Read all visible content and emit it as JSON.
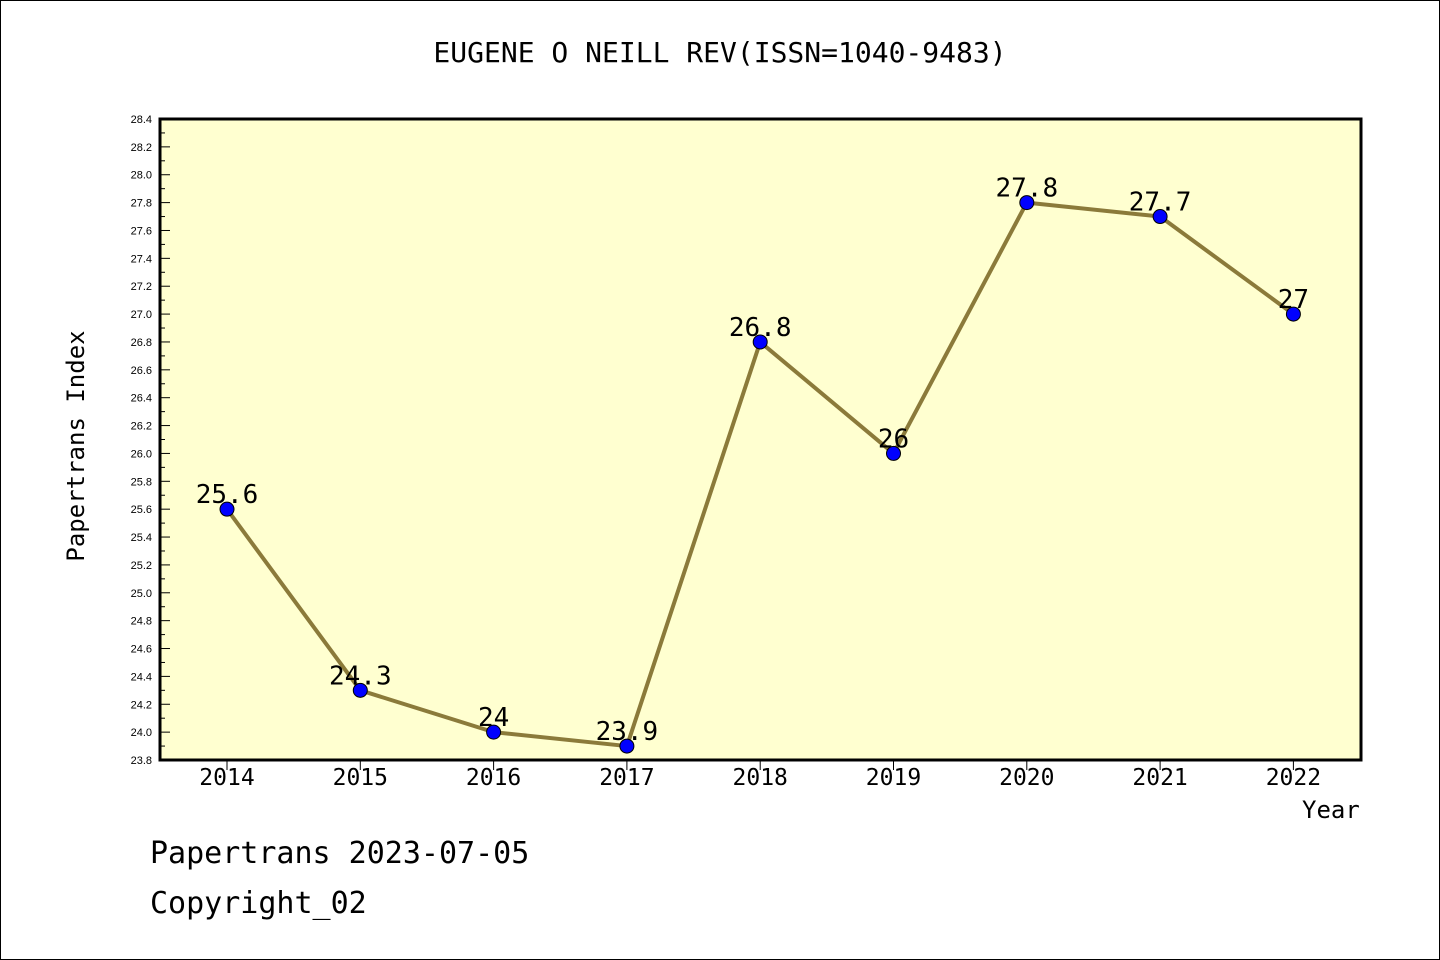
{
  "chart_data": {
    "type": "line",
    "title": "EUGENE O NEILL REV(ISSN=1040-9483)",
    "xlabel": "Year",
    "ylabel": "Papertrans Index",
    "categories": [
      "2014",
      "2015",
      "2016",
      "2017",
      "2018",
      "2019",
      "2020",
      "2021",
      "2022"
    ],
    "series": [
      {
        "values": [
          25.6,
          24.3,
          24.0,
          23.9,
          26.8,
          26.0,
          27.8,
          27.7,
          27.0
        ],
        "labels": [
          "25.6",
          "24.3",
          "24",
          "23.9",
          "26.8",
          "26",
          "27.8",
          "27.7",
          "27"
        ]
      }
    ],
    "ylim": [
      23.8,
      28.4
    ],
    "yticks": [
      "23.8",
      "24.0",
      "24.2",
      "24.4",
      "24.6",
      "24.8",
      "25.0",
      "25.2",
      "25.4",
      "25.6",
      "25.8",
      "26.0",
      "26.2",
      "26.4",
      "26.6",
      "26.8",
      "27.0",
      "27.2",
      "27.4",
      "27.6",
      "27.8",
      "28.0",
      "28.2",
      "28.4"
    ],
    "grid": false,
    "colors": {
      "line": "#8b7a3a",
      "marker": "#0000ff",
      "plot_background": "#ffffd0"
    }
  },
  "footer": {
    "line1": "Papertrans 2023-07-05",
    "line2": "Copyright_02"
  }
}
